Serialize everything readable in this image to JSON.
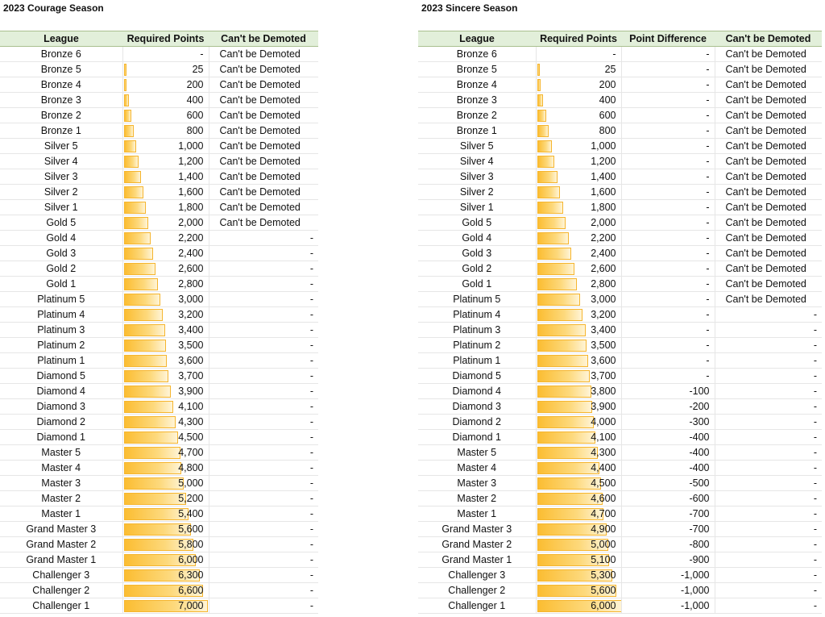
{
  "left": {
    "title": "2023 Courage Season",
    "headers": {
      "league": "League",
      "points": "Required Points",
      "demote": "Can't be Demoted"
    },
    "max_points": 7000,
    "rows": [
      {
        "league": "Bronze 6",
        "points_label": "-",
        "points": 0,
        "demote": "Can't be Demoted"
      },
      {
        "league": "Bronze 5",
        "points_label": "25",
        "points": 25,
        "demote": "Can't be Demoted"
      },
      {
        "league": "Bronze 4",
        "points_label": "200",
        "points": 200,
        "demote": "Can't be Demoted"
      },
      {
        "league": "Bronze 3",
        "points_label": "400",
        "points": 400,
        "demote": "Can't be Demoted"
      },
      {
        "league": "Bronze 2",
        "points_label": "600",
        "points": 600,
        "demote": "Can't be Demoted"
      },
      {
        "league": "Bronze 1",
        "points_label": "800",
        "points": 800,
        "demote": "Can't be Demoted"
      },
      {
        "league": "Silver 5",
        "points_label": "1,000",
        "points": 1000,
        "demote": "Can't be Demoted"
      },
      {
        "league": "Silver 4",
        "points_label": "1,200",
        "points": 1200,
        "demote": "Can't be Demoted"
      },
      {
        "league": "Silver 3",
        "points_label": "1,400",
        "points": 1400,
        "demote": "Can't be Demoted"
      },
      {
        "league": "Silver 2",
        "points_label": "1,600",
        "points": 1600,
        "demote": "Can't be Demoted"
      },
      {
        "league": "Silver 1",
        "points_label": "1,800",
        "points": 1800,
        "demote": "Can't be Demoted"
      },
      {
        "league": "Gold 5",
        "points_label": "2,000",
        "points": 2000,
        "demote": "Can't be Demoted"
      },
      {
        "league": "Gold 4",
        "points_label": "2,200",
        "points": 2200,
        "demote": "-"
      },
      {
        "league": "Gold 3",
        "points_label": "2,400",
        "points": 2400,
        "demote": "-"
      },
      {
        "league": "Gold 2",
        "points_label": "2,600",
        "points": 2600,
        "demote": "-"
      },
      {
        "league": "Gold 1",
        "points_label": "2,800",
        "points": 2800,
        "demote": "-"
      },
      {
        "league": "Platinum 5",
        "points_label": "3,000",
        "points": 3000,
        "demote": "-"
      },
      {
        "league": "Platinum 4",
        "points_label": "3,200",
        "points": 3200,
        "demote": "-"
      },
      {
        "league": "Platinum 3",
        "points_label": "3,400",
        "points": 3400,
        "demote": "-"
      },
      {
        "league": "Platinum 2",
        "points_label": "3,500",
        "points": 3500,
        "demote": "-"
      },
      {
        "league": "Platinum 1",
        "points_label": "3,600",
        "points": 3600,
        "demote": "-"
      },
      {
        "league": "Diamond 5",
        "points_label": "3,700",
        "points": 3700,
        "demote": "-"
      },
      {
        "league": "Diamond 4",
        "points_label": "3,900",
        "points": 3900,
        "demote": "-"
      },
      {
        "league": "Diamond 3",
        "points_label": "4,100",
        "points": 4100,
        "demote": "-"
      },
      {
        "league": "Diamond 2",
        "points_label": "4,300",
        "points": 4300,
        "demote": "-"
      },
      {
        "league": "Diamond 1",
        "points_label": "4,500",
        "points": 4500,
        "demote": "-"
      },
      {
        "league": "Master 5",
        "points_label": "4,700",
        "points": 4700,
        "demote": "-"
      },
      {
        "league": "Master 4",
        "points_label": "4,800",
        "points": 4800,
        "demote": "-"
      },
      {
        "league": "Master 3",
        "points_label": "5,000",
        "points": 5000,
        "demote": "-"
      },
      {
        "league": "Master 2",
        "points_label": "5,200",
        "points": 5200,
        "demote": "-"
      },
      {
        "league": "Master 1",
        "points_label": "5,400",
        "points": 5400,
        "demote": "-"
      },
      {
        "league": "Grand Master 3",
        "points_label": "5,600",
        "points": 5600,
        "demote": "-"
      },
      {
        "league": "Grand Master 2",
        "points_label": "5,800",
        "points": 5800,
        "demote": "-"
      },
      {
        "league": "Grand Master 1",
        "points_label": "6,000",
        "points": 6000,
        "demote": "-"
      },
      {
        "league": "Challenger 3",
        "points_label": "6,300",
        "points": 6300,
        "demote": "-"
      },
      {
        "league": "Challenger 2",
        "points_label": "6,600",
        "points": 6600,
        "demote": "-"
      },
      {
        "league": "Challenger 1",
        "points_label": "7,000",
        "points": 7000,
        "demote": "-"
      }
    ]
  },
  "right": {
    "title": "2023 Sincere Season",
    "headers": {
      "league": "League",
      "points": "Required Points",
      "diff": "Point Difference",
      "demote": "Can't be Demoted"
    },
    "max_points": 6000,
    "rows": [
      {
        "league": "Bronze 6",
        "points_label": "-",
        "points": 0,
        "diff": "-",
        "demote": "Can't be Demoted"
      },
      {
        "league": "Bronze 5",
        "points_label": "25",
        "points": 25,
        "diff": "-",
        "demote": "Can't be Demoted"
      },
      {
        "league": "Bronze 4",
        "points_label": "200",
        "points": 200,
        "diff": "-",
        "demote": "Can't be Demoted"
      },
      {
        "league": "Bronze 3",
        "points_label": "400",
        "points": 400,
        "diff": "-",
        "demote": "Can't be Demoted"
      },
      {
        "league": "Bronze 2",
        "points_label": "600",
        "points": 600,
        "diff": "-",
        "demote": "Can't be Demoted"
      },
      {
        "league": "Bronze 1",
        "points_label": "800",
        "points": 800,
        "diff": "-",
        "demote": "Can't be Demoted"
      },
      {
        "league": "Silver 5",
        "points_label": "1,000",
        "points": 1000,
        "diff": "-",
        "demote": "Can't be Demoted"
      },
      {
        "league": "Silver 4",
        "points_label": "1,200",
        "points": 1200,
        "diff": "-",
        "demote": "Can't be Demoted"
      },
      {
        "league": "Silver 3",
        "points_label": "1,400",
        "points": 1400,
        "diff": "-",
        "demote": "Can't be Demoted"
      },
      {
        "league": "Silver 2",
        "points_label": "1,600",
        "points": 1600,
        "diff": "-",
        "demote": "Can't be Demoted"
      },
      {
        "league": "Silver 1",
        "points_label": "1,800",
        "points": 1800,
        "diff": "-",
        "demote": "Can't be Demoted"
      },
      {
        "league": "Gold 5",
        "points_label": "2,000",
        "points": 2000,
        "diff": "-",
        "demote": "Can't be Demoted"
      },
      {
        "league": "Gold 4",
        "points_label": "2,200",
        "points": 2200,
        "diff": "-",
        "demote": "Can't be Demoted"
      },
      {
        "league": "Gold 3",
        "points_label": "2,400",
        "points": 2400,
        "diff": "-",
        "demote": "Can't be Demoted"
      },
      {
        "league": "Gold 2",
        "points_label": "2,600",
        "points": 2600,
        "diff": "-",
        "demote": "Can't be Demoted"
      },
      {
        "league": "Gold 1",
        "points_label": "2,800",
        "points": 2800,
        "diff": "-",
        "demote": "Can't be Demoted"
      },
      {
        "league": "Platinum 5",
        "points_label": "3,000",
        "points": 3000,
        "diff": "-",
        "demote": "Can't be Demoted"
      },
      {
        "league": "Platinum 4",
        "points_label": "3,200",
        "points": 3200,
        "diff": "-",
        "demote": "-"
      },
      {
        "league": "Platinum 3",
        "points_label": "3,400",
        "points": 3400,
        "diff": "-",
        "demote": "-"
      },
      {
        "league": "Platinum 2",
        "points_label": "3,500",
        "points": 3500,
        "diff": "-",
        "demote": "-"
      },
      {
        "league": "Platinum 1",
        "points_label": "3,600",
        "points": 3600,
        "diff": "-",
        "demote": "-"
      },
      {
        "league": "Diamond 5",
        "points_label": "3,700",
        "points": 3700,
        "diff": "-",
        "demote": "-"
      },
      {
        "league": "Diamond 4",
        "points_label": "3,800",
        "points": 3800,
        "diff": "-100",
        "demote": "-"
      },
      {
        "league": "Diamond 3",
        "points_label": "3,900",
        "points": 3900,
        "diff": "-200",
        "demote": "-"
      },
      {
        "league": "Diamond 2",
        "points_label": "4,000",
        "points": 4000,
        "diff": "-300",
        "demote": "-"
      },
      {
        "league": "Diamond 1",
        "points_label": "4,100",
        "points": 4100,
        "diff": "-400",
        "demote": "-"
      },
      {
        "league": "Master 5",
        "points_label": "4,300",
        "points": 4300,
        "diff": "-400",
        "demote": "-"
      },
      {
        "league": "Master 4",
        "points_label": "4,400",
        "points": 4400,
        "diff": "-400",
        "demote": "-"
      },
      {
        "league": "Master 3",
        "points_label": "4,500",
        "points": 4500,
        "diff": "-500",
        "demote": "-"
      },
      {
        "league": "Master 2",
        "points_label": "4,600",
        "points": 4600,
        "diff": "-600",
        "demote": "-"
      },
      {
        "league": "Master 1",
        "points_label": "4,700",
        "points": 4700,
        "diff": "-700",
        "demote": "-"
      },
      {
        "league": "Grand Master 3",
        "points_label": "4,900",
        "points": 4900,
        "diff": "-700",
        "demote": "-"
      },
      {
        "league": "Grand Master 2",
        "points_label": "5,000",
        "points": 5000,
        "diff": "-800",
        "demote": "-"
      },
      {
        "league": "Grand Master 1",
        "points_label": "5,100",
        "points": 5100,
        "diff": "-900",
        "demote": "-"
      },
      {
        "league": "Challenger 3",
        "points_label": "5,300",
        "points": 5300,
        "diff": "-1,000",
        "demote": "-"
      },
      {
        "league": "Challenger 2",
        "points_label": "5,600",
        "points": 5600,
        "diff": "-1,000",
        "demote": "-"
      },
      {
        "league": "Challenger 1",
        "points_label": "6,000",
        "points": 6000,
        "diff": "-1,000",
        "demote": "-"
      }
    ]
  },
  "colors": {
    "header_bg": "#e2efda",
    "header_border": "#a9c08f",
    "bar_fill": "#fbbd32",
    "bar_border": "#f5b52e"
  }
}
